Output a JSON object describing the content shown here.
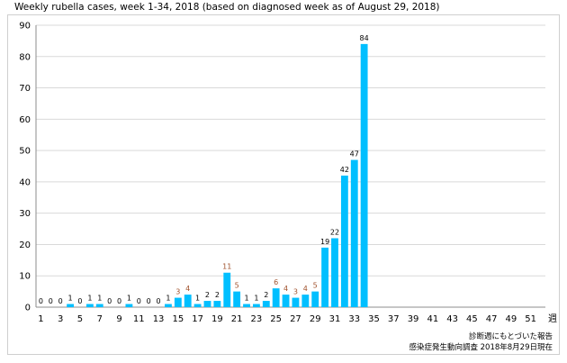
{
  "chart_data": {
    "type": "bar",
    "title": "Weekly rubella cases, week 1-34, 2018 (based on diagnosed week as of August 29, 2018)",
    "x_unit_label": "週",
    "weeks": [
      1,
      2,
      3,
      4,
      5,
      6,
      7,
      8,
      9,
      10,
      11,
      12,
      13,
      14,
      15,
      16,
      17,
      18,
      19,
      20,
      21,
      22,
      23,
      24,
      25,
      26,
      27,
      28,
      29,
      30,
      31,
      32,
      33,
      34
    ],
    "values": [
      0,
      0,
      0,
      1,
      0,
      1,
      1,
      0,
      0,
      1,
      0,
      0,
      0,
      1,
      3,
      4,
      1,
      2,
      2,
      11,
      5,
      1,
      1,
      2,
      6,
      4,
      3,
      4,
      5,
      19,
      22,
      42,
      47,
      84
    ],
    "x_tick_labels": [
      "1",
      "3",
      "5",
      "7",
      "9",
      "11",
      "13",
      "15",
      "17",
      "19",
      "21",
      "23",
      "25",
      "27",
      "29",
      "31",
      "33",
      "35",
      "37",
      "39",
      "41",
      "43",
      "45",
      "47",
      "49",
      "51"
    ],
    "x_range": [
      1,
      52
    ],
    "y_ticks": [
      0,
      10,
      20,
      30,
      40,
      50,
      60,
      70,
      80,
      90
    ],
    "ylim": [
      0,
      90
    ],
    "grid": true,
    "bar_color": "#00bfff",
    "value_label_color_low": "#000000",
    "value_label_color_mid": "#a0522d"
  },
  "notes": {
    "line1": "診断週にもとづいた報告",
    "line2": "感染症発生動向調査 2018年8月29日現在"
  }
}
